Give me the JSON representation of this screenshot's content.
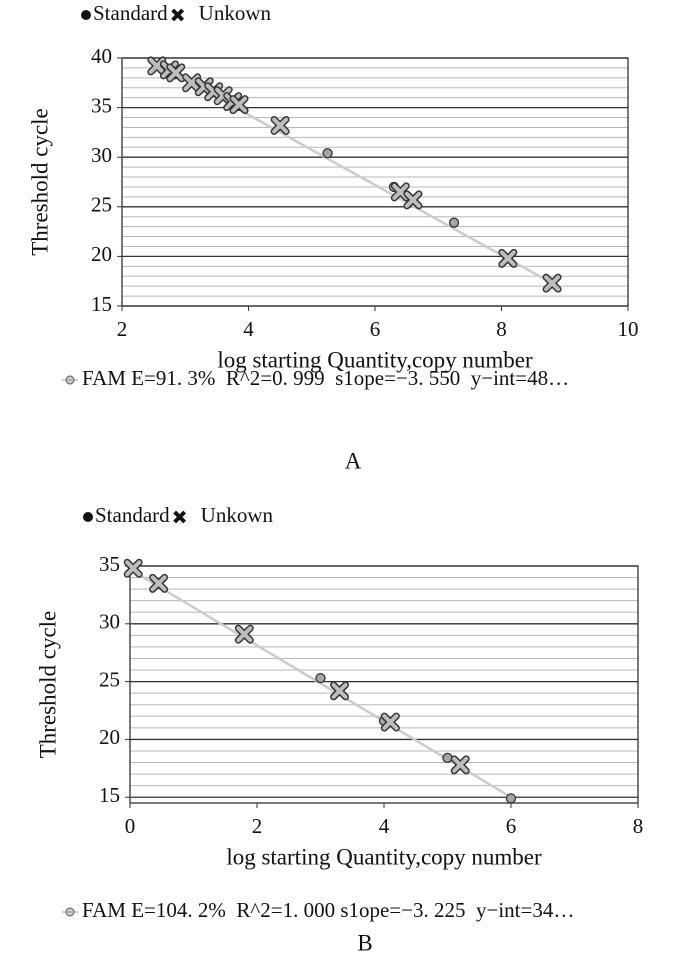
{
  "chart_data": [
    {
      "type": "scatter",
      "x_label": "log starting Quantity,copy number",
      "y_label": "Threshold cycle",
      "caption": "A",
      "xlim": [
        2,
        10
      ],
      "xticks": [
        2,
        4,
        6,
        8,
        10
      ],
      "ylim": [
        15,
        40
      ],
      "yticks": [
        15,
        20,
        25,
        30,
        35,
        40
      ],
      "grid": true,
      "series": [
        {
          "name": "Standard",
          "marker": "circle",
          "color": "#a6a6a6",
          "x": [
            5.25,
            6.3,
            7.25,
            8.1
          ],
          "values": [
            30.4,
            27.0,
            23.4,
            19.8
          ]
        },
        {
          "name": "Unkown",
          "marker": "x",
          "color": "#bdbdbd",
          "x": [
            2.55,
            2.75,
            2.85,
            3.1,
            3.3,
            3.45,
            3.6,
            3.75,
            3.85,
            4.5,
            6.4,
            6.6,
            8.1,
            8.8
          ],
          "values": [
            39.2,
            38.8,
            38.5,
            37.5,
            37.1,
            36.6,
            36.2,
            35.6,
            35.3,
            33.2,
            26.5,
            25.7,
            19.8,
            17.3
          ]
        },
        {
          "name": "FAM E=91. 3%  R^2=0. 999  s1ope=−3. 550  y−int=48…",
          "marker": "line",
          "color": "#cccccc",
          "x": [
            2.55,
            8.8
          ],
          "values": [
            39.4,
            17.3
          ]
        }
      ]
    },
    {
      "type": "scatter",
      "x_label": "log starting Quantity,copy number",
      "y_label": "Threshold cycle",
      "caption": "B",
      "xlim": [
        0,
        8
      ],
      "xticks": [
        0,
        2,
        4,
        6,
        8
      ],
      "ylim": [
        14.5,
        35
      ],
      "yticks": [
        15,
        20,
        25,
        30,
        35
      ],
      "grid": true,
      "series": [
        {
          "name": "Standard",
          "marker": "circle",
          "color": "#a6a6a6",
          "x": [
            3.0,
            4.0,
            5.0,
            6.0
          ],
          "values": [
            25.3,
            21.6,
            18.4,
            14.9
          ]
        },
        {
          "name": "Unkown",
          "marker": "x",
          "color": "#bdbdbd",
          "x": [
            0.05,
            0.45,
            1.8,
            3.3,
            4.1,
            5.2
          ],
          "values": [
            34.8,
            33.5,
            29.1,
            24.2,
            21.5,
            17.8
          ]
        },
        {
          "name": "FAM E=104. 2%  R^2=1. 000 s1ope=−3. 225  y−int=34…",
          "marker": "line",
          "color": "#cccccc",
          "x": [
            0,
            6
          ],
          "values": [
            34.7,
            15.0
          ]
        }
      ]
    }
  ]
}
